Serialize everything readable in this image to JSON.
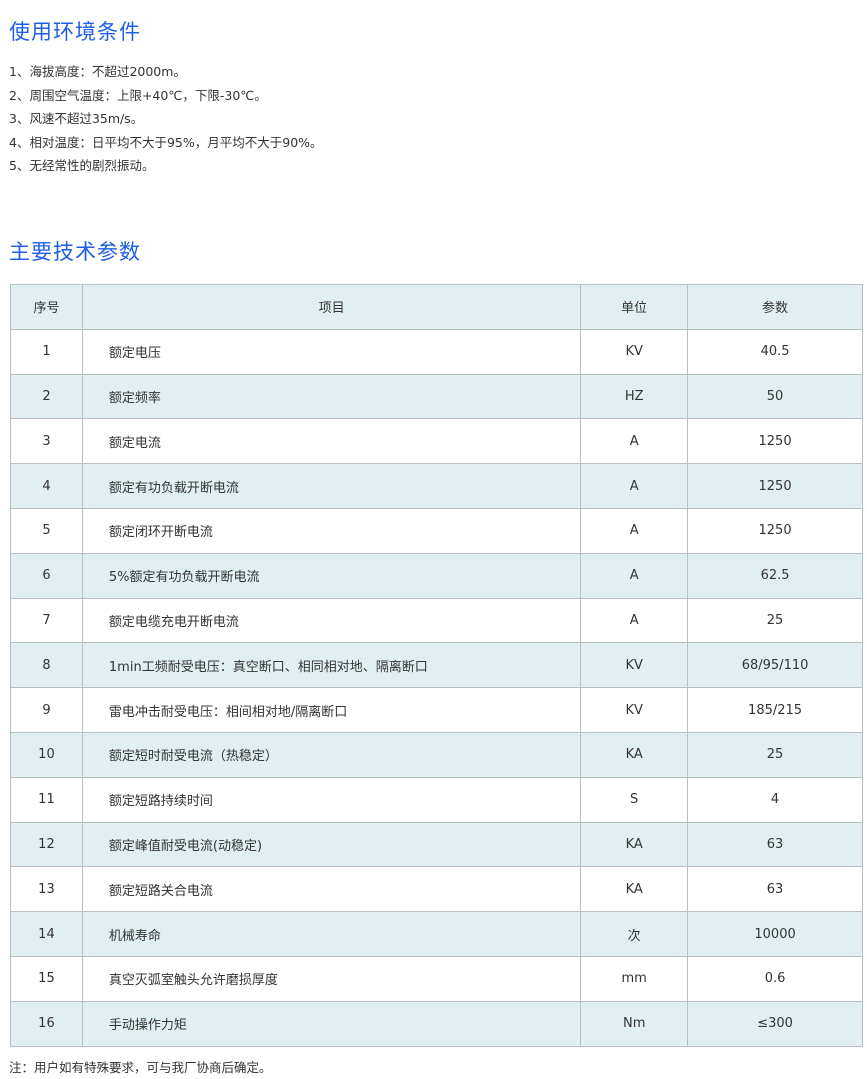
{
  "conditions": {
    "title": "使用环境条件",
    "items": [
      "1、海拔高度：不超过2000m。",
      "2、周围空气温度：上限+40℃，下限-30℃。",
      "3、风速不超过35m/s。",
      "4、相对温度：日平均不大于95%，月平均不大于90%。",
      "5、无经常性的剧烈振动。"
    ]
  },
  "params": {
    "title": "主要技术参数",
    "headers": [
      "序号",
      "项目",
      "单位",
      "参数"
    ],
    "rows": [
      [
        "1",
        "额定电压",
        "KV",
        "40.5"
      ],
      [
        "2",
        "额定频率",
        "HZ",
        "50"
      ],
      [
        "3",
        "额定电流",
        "A",
        "1250"
      ],
      [
        "4",
        "额定有功负载开断电流",
        "A",
        "1250"
      ],
      [
        "5",
        "额定闭环开断电流",
        "A",
        "1250"
      ],
      [
        "6",
        "5%额定有功负载开断电流",
        "A",
        "62.5"
      ],
      [
        "7",
        "额定电缆充电开断电流",
        "A",
        "25"
      ],
      [
        "8",
        "1min工频耐受电压：真空断口、相同相对地、隔离断口",
        "KV",
        "68/95/110"
      ],
      [
        "9",
        "雷电冲击耐受电压：相间相对地/隔离断口",
        "KV",
        "185/215"
      ],
      [
        "10",
        "额定短时耐受电流（热稳定）",
        "KA",
        "25"
      ],
      [
        "11",
        "额定短路持续时间",
        "S",
        "4"
      ],
      [
        "12",
        "额定峰值耐受电流(动稳定)",
        "KA",
        "63"
      ],
      [
        "13",
        "额定短路关合电流",
        "KA",
        "63"
      ],
      [
        "14",
        "机械寿命",
        "次",
        "10000"
      ],
      [
        "15",
        "真空灭弧室触头允许磨损厚度",
        "mm",
        "0.6"
      ],
      [
        "16",
        "手动操作力矩",
        "Nm",
        "≤300"
      ]
    ],
    "note": "注：用户如有特殊要求，可与我厂协商后确定。"
  },
  "colors": {
    "heading": "#1f5fe6",
    "row_tint": "#e1eff2",
    "border": "#b9bfc0"
  }
}
